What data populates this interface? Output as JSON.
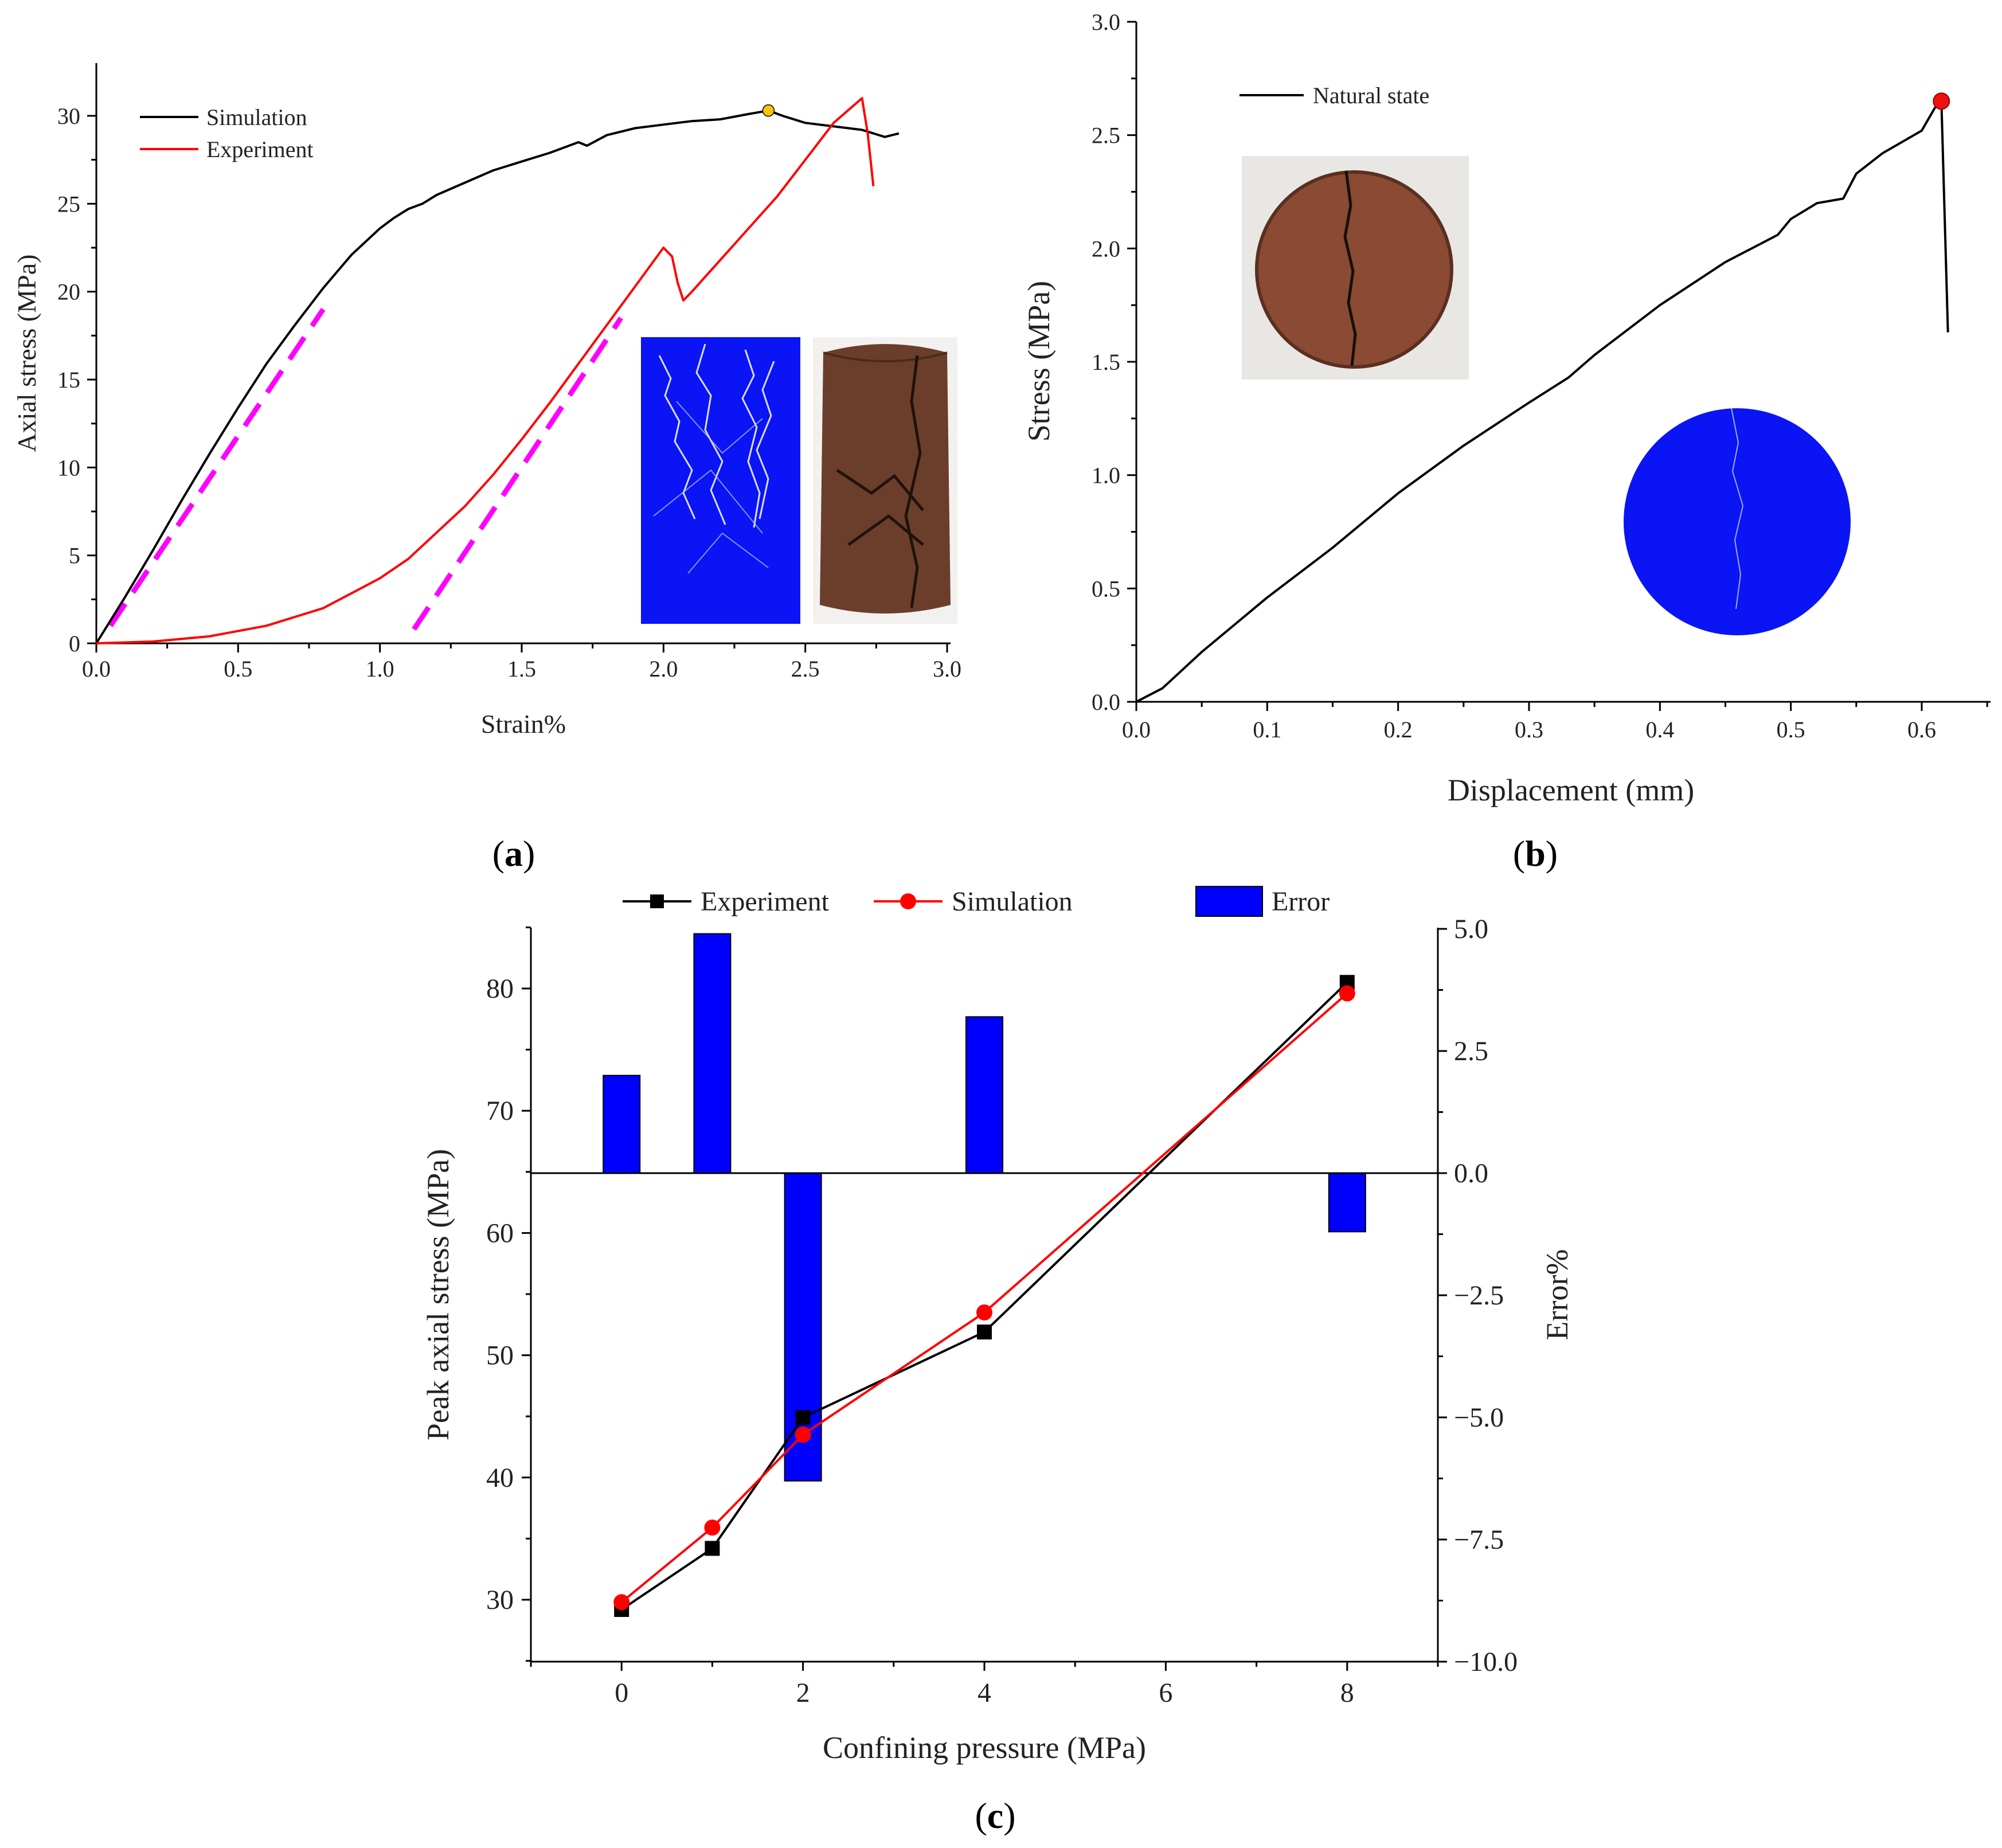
{
  "chart_data": [
    {
      "id": "a",
      "type": "line",
      "panel_label": "a",
      "xlabel": "Strain%",
      "ylabel": "Axial stress (MPa)",
      "xlim": [
        0,
        3.0
      ],
      "ylim": [
        0,
        32
      ],
      "xticks": [
        "0.0",
        "0.5",
        "1.0",
        "1.5",
        "2.0",
        "2.5",
        "3.0"
      ],
      "yticks": [
        "0",
        "5",
        "10",
        "15",
        "20",
        "25",
        "30"
      ],
      "colors": {
        "Simulation": "#000000",
        "Experiment": "#ff0000",
        "tangent": "#ff00ff",
        "peak": "#f5c211"
      },
      "series": [
        {
          "name": "Simulation",
          "x": [
            0,
            0.1,
            0.2,
            0.3,
            0.4,
            0.5,
            0.6,
            0.7,
            0.8,
            0.9,
            1.0,
            1.05,
            1.1,
            1.15,
            1.2,
            1.3,
            1.4,
            1.5,
            1.6,
            1.7,
            1.73,
            1.8,
            1.9,
            2.0,
            2.1,
            2.2,
            2.3,
            2.37,
            2.42,
            2.5,
            2.6,
            2.7,
            2.78,
            2.83
          ],
          "y": [
            0,
            2.6,
            5.3,
            8.1,
            10.8,
            13.4,
            15.9,
            18.1,
            20.2,
            22.1,
            23.6,
            24.2,
            24.7,
            25.0,
            25.5,
            26.2,
            26.9,
            27.4,
            27.9,
            28.5,
            28.3,
            28.9,
            29.3,
            29.5,
            29.7,
            29.8,
            30.1,
            30.3,
            30.0,
            29.6,
            29.4,
            29.2,
            28.8,
            29.0
          ]
        },
        {
          "name": "Experiment",
          "x": [
            0,
            0.2,
            0.4,
            0.6,
            0.8,
            1.0,
            1.1,
            1.2,
            1.3,
            1.4,
            1.5,
            1.6,
            1.7,
            1.8,
            1.9,
            2.0,
            2.03,
            2.05,
            2.07,
            2.1,
            2.2,
            2.3,
            2.4,
            2.5,
            2.6,
            2.7,
            2.72,
            2.74
          ],
          "y": [
            0,
            0.1,
            0.4,
            1.0,
            2.0,
            3.7,
            4.8,
            6.3,
            7.8,
            9.6,
            11.6,
            13.7,
            15.9,
            18.1,
            20.3,
            22.5,
            22.0,
            20.5,
            19.5,
            20.0,
            21.8,
            23.6,
            25.4,
            27.5,
            29.6,
            31.0,
            29.0,
            26.0
          ]
        }
      ],
      "peak_marker": {
        "x": 2.37,
        "y": 30.3
      },
      "tangent_lines": [
        {
          "x": [
            0.05,
            0.8
          ],
          "y": [
            1.0,
            19.0
          ]
        },
        {
          "x": [
            1.12,
            1.85
          ],
          "y": [
            0.8,
            18.5
          ]
        }
      ],
      "legend": {
        "position": "top-left",
        "entries": [
          "Simulation",
          "Experiment"
        ]
      },
      "insets": [
        "numerical specimen fracture pattern",
        "experimental cylindrical specimen"
      ]
    },
    {
      "id": "b",
      "type": "line",
      "panel_label": "b",
      "xlabel": "Displacement (mm)",
      "ylabel": "Stress (MPa)",
      "xlim": [
        0,
        0.65
      ],
      "ylim": [
        0,
        3.0
      ],
      "xticks": [
        "0.0",
        "0.1",
        "0.2",
        "0.3",
        "0.4",
        "0.5",
        "0.6"
      ],
      "yticks": [
        "0.0",
        "0.5",
        "1.0",
        "1.5",
        "2.0",
        "2.5",
        "3.0"
      ],
      "colors": {
        "Natural state": "#000000",
        "peak": "#ee1111"
      },
      "series": [
        {
          "name": "Natural state",
          "x": [
            0,
            0.02,
            0.05,
            0.1,
            0.15,
            0.2,
            0.25,
            0.3,
            0.33,
            0.35,
            0.4,
            0.45,
            0.49,
            0.5,
            0.52,
            0.54,
            0.55,
            0.57,
            0.6,
            0.61,
            0.615,
            0.62
          ],
          "y": [
            0,
            0.06,
            0.22,
            0.46,
            0.68,
            0.92,
            1.13,
            1.32,
            1.43,
            1.53,
            1.75,
            1.94,
            2.06,
            2.13,
            2.2,
            2.22,
            2.33,
            2.42,
            2.52,
            2.62,
            2.65,
            1.63
          ]
        }
      ],
      "peak_marker": {
        "x": 0.615,
        "y": 2.65
      },
      "legend": {
        "position": "top-left",
        "entries": [
          "Natural state"
        ]
      },
      "insets": [
        "split disc specimen photo",
        "numerical disc model"
      ]
    },
    {
      "id": "c",
      "type": "bar+line",
      "panel_label": "c",
      "xlabel": "Confining pressure (MPa)",
      "ylabel": "Peak axial stress (MPa)",
      "y2label": "Error%",
      "xlim": [
        -1,
        9
      ],
      "ylim": [
        25,
        85
      ],
      "y2lim": [
        -10.0,
        5.0
      ],
      "xticks": [
        "0",
        "2",
        "4",
        "6",
        "8"
      ],
      "yticks": [
        "30",
        "40",
        "50",
        "60",
        "70",
        "80"
      ],
      "y2ticks": [
        "5.0",
        "2.5",
        "0.0",
        "−2.5",
        "−5.0",
        "−7.5",
        "−10.0"
      ],
      "categories": [
        0,
        1,
        2,
        4,
        8
      ],
      "colors": {
        "Experiment": "#000000",
        "Simulation": "#ff0000",
        "Error": "#0000ff"
      },
      "series": [
        {
          "name": "Experiment",
          "x": [
            0,
            1,
            2,
            4,
            8
          ],
          "values": [
            29.2,
            34.2,
            44.9,
            51.9,
            80.5
          ]
        },
        {
          "name": "Simulation",
          "x": [
            0,
            1,
            2,
            4,
            8
          ],
          "values": [
            29.8,
            35.9,
            43.5,
            53.5,
            79.6
          ]
        },
        {
          "name": "Error",
          "x": [
            0,
            1,
            2,
            4,
            8
          ],
          "values": [
            2.0,
            4.9,
            -6.3,
            3.2,
            -1.2
          ],
          "axis": "right"
        }
      ],
      "legend": {
        "position": "top",
        "entries": [
          "Experiment",
          "Simulation",
          "Error"
        ]
      }
    }
  ]
}
